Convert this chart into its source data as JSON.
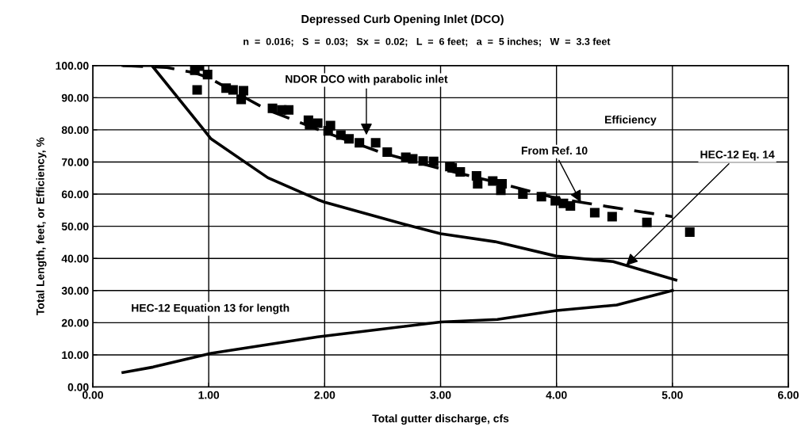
{
  "chart_data": {
    "type": "line",
    "title": "Depressed Curb Opening Inlet (DCO)",
    "subtitle": "n  =  0.016;   S  =  0.03;   Sx  =  0.02;   L  =  6 feet;   a  =  5 inches;   W  =  3.3 feet",
    "xlabel": "Total gutter discharge, cfs",
    "ylabel": "Total Length, feet, or Efficiency, %",
    "xlim": [
      0,
      6
    ],
    "ylim": [
      0,
      100
    ],
    "xticks": [
      {
        "value": 0,
        "label": "0.00"
      },
      {
        "value": 1,
        "label": "1.00"
      },
      {
        "value": 2,
        "label": "2.00"
      },
      {
        "value": 3,
        "label": "3.00"
      },
      {
        "value": 4,
        "label": "4.00"
      },
      {
        "value": 5,
        "label": "5.00"
      },
      {
        "value": 6,
        "label": "6.00"
      }
    ],
    "yticks": [
      {
        "value": 0,
        "label": "0.00"
      },
      {
        "value": 10,
        "label": "10.00"
      },
      {
        "value": 20,
        "label": "20.00"
      },
      {
        "value": 30,
        "label": "30.00"
      },
      {
        "value": 40,
        "label": "40.00"
      },
      {
        "value": 50,
        "label": "50.00"
      },
      {
        "value": 60,
        "label": "60.00"
      },
      {
        "value": 70,
        "label": "70.00"
      },
      {
        "value": 80,
        "label": "80.00"
      },
      {
        "value": 90,
        "label": "90.00"
      },
      {
        "value": 100,
        "label": "100.00"
      }
    ],
    "grid": true,
    "legend": false,
    "series": [
      {
        "type": "scatter",
        "marker": "square",
        "color": "#000000",
        "x": [
          0.88,
          0.92,
          0.9,
          0.99,
          1.15,
          1.21,
          1.3,
          1.28,
          1.55,
          1.63,
          1.69,
          1.86,
          1.87,
          1.94,
          2.05,
          2.03,
          2.14,
          2.21,
          2.3,
          2.44,
          2.54,
          2.7,
          2.76,
          2.85,
          2.94,
          3.08,
          3.1,
          3.17,
          3.31,
          3.32,
          3.45,
          3.53,
          3.52,
          3.71,
          3.87,
          3.99,
          4.06,
          4.12,
          4.33,
          4.48,
          4.78,
          5.15
        ],
        "values": [
          98.5,
          99.8,
          92.4,
          97.2,
          93,
          92.4,
          92.2,
          89.5,
          86.7,
          86.2,
          86.2,
          83,
          81.6,
          82.1,
          81.3,
          79.7,
          78.4,
          77.2,
          76,
          76,
          73.1,
          71.5,
          71,
          70.3,
          70.2,
          68.6,
          68.2,
          66.9,
          65.7,
          63.2,
          64.1,
          63.2,
          61.2,
          60,
          59.2,
          57.9,
          57.1,
          56.3,
          54.2,
          53,
          51.2,
          48.2
        ]
      },
      {
        "line_style": "dashed",
        "marker": "none",
        "color": "#000000",
        "x": [
          0.26,
          0.64,
          0.88,
          1.0,
          1.5,
          2.0,
          2.5,
          3.0,
          3.5,
          4.0,
          4.5,
          5.0
        ],
        "values": [
          100,
          99.4,
          97.7,
          96.2,
          86.3,
          79.3,
          72.8,
          67.9,
          63.5,
          58.7,
          55.8,
          53
        ]
      },
      {
        "line_style": "solid",
        "marker": "none",
        "color": "#000000",
        "x": [
          0.26,
          0.51,
          1.02,
          1.51,
          1.94,
          2.0,
          2.66,
          3.0,
          3.47,
          4.0,
          4.49,
          5.03
        ],
        "values": [
          100,
          100,
          77.2,
          65.1,
          58.3,
          57.5,
          50.9,
          47.7,
          45.2,
          40.7,
          39,
          33.3
        ]
      },
      {
        "line_style": "solid",
        "marker": "none",
        "color": "#000000",
        "x": [
          0.26,
          0.52,
          1.02,
          1.94,
          3.0,
          3.49,
          4.0,
          4.52,
          5.0
        ],
        "values": [
          4.5,
          6.2,
          10.5,
          15.6,
          20.2,
          21,
          23.8,
          25.5,
          30
        ]
      }
    ],
    "annotations": [
      {
        "text": "NDOR DCO with parabolic inlet",
        "x": 2.36,
        "y": 78.4
      },
      "Efficiency",
      {
        "text": "From Ref. 10",
        "x": 4.21,
        "y": 57.5
      },
      {
        "text": "HEC-12 Eq. 14",
        "x": 4.6,
        "y": 37.8
      },
      "HEC-12 Equation 13 for length"
    ]
  }
}
